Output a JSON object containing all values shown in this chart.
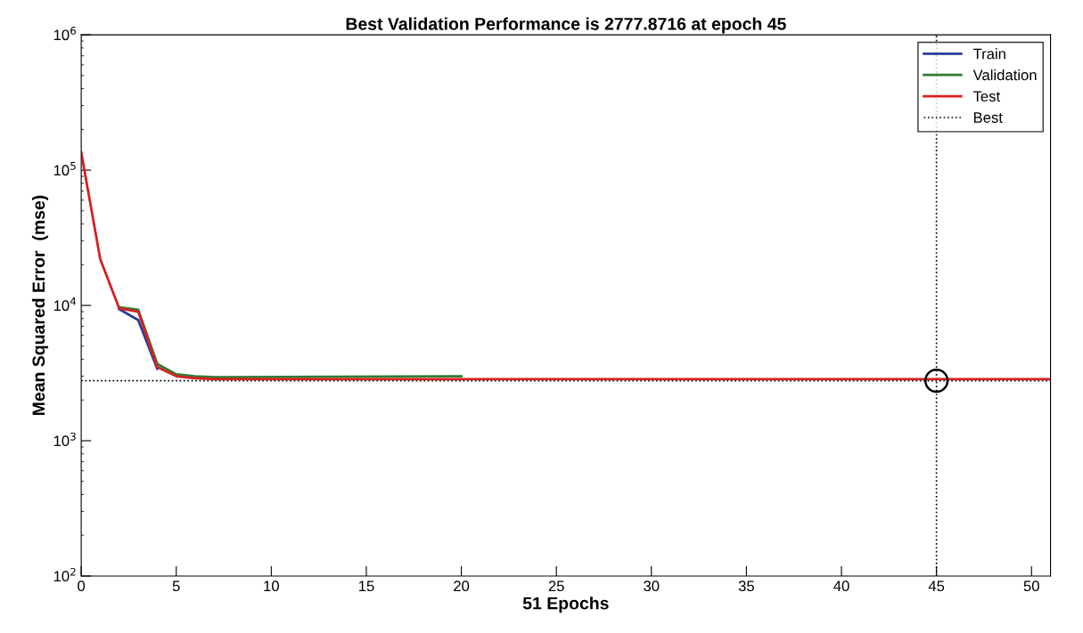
{
  "chart_data": {
    "type": "line",
    "title": "Best Validation Performance is 2777.8716 at epoch 45",
    "xlabel": "51 Epochs",
    "ylabel": "Mean Squared Error  (mse)",
    "x": [
      0,
      1,
      2,
      3,
      4,
      5,
      6,
      7,
      20,
      45,
      51
    ],
    "series": [
      {
        "name": "Train",
        "color": "#2b3a9a",
        "values": [
          null,
          null,
          9400,
          7800,
          3400,
          null,
          null,
          null,
          null,
          null,
          null
        ]
      },
      {
        "name": "Validation",
        "color": "#2e7d32",
        "values": [
          null,
          null,
          9700,
          9300,
          3700,
          3100,
          3000,
          2950,
          3000,
          null,
          null
        ]
      },
      {
        "name": "Test",
        "color": "#d62020",
        "values": [
          135000,
          22000,
          9500,
          9000,
          3500,
          3000,
          2900,
          2850,
          2850,
          2850,
          2850
        ]
      },
      {
        "type": "scatter",
        "color": "#000000",
        "marker": "circle",
        "x": [
          45
        ],
        "values": [
          2777.8716
        ]
      }
    ],
    "ref_lines": [
      {
        "axis": "y",
        "value": 2777.8716,
        "label": "Best",
        "color": "#000000",
        "line_style": "dotted"
      },
      {
        "axis": "x",
        "value": 45,
        "color": "#000000",
        "line_style": "dotted"
      }
    ],
    "log": "y",
    "xlim": [
      0,
      51
    ],
    "xticks": [
      0,
      5,
      10,
      15,
      20,
      25,
      30,
      35,
      40,
      45,
      50
    ],
    "ylim": [
      100,
      1000000
    ],
    "yticks": [
      {
        "value": 100,
        "label": "10$^{2}$"
      },
      {
        "value": 1000,
        "label": "10$^{3}$"
      },
      {
        "value": 10000,
        "label": "10$^{4}$"
      },
      {
        "value": 100000,
        "label": "10$^{5}$"
      },
      {
        "value": 1000000,
        "label": "10$^{6}$"
      }
    ],
    "grid": false,
    "legend": "top right",
    "line_style": "solid"
  }
}
